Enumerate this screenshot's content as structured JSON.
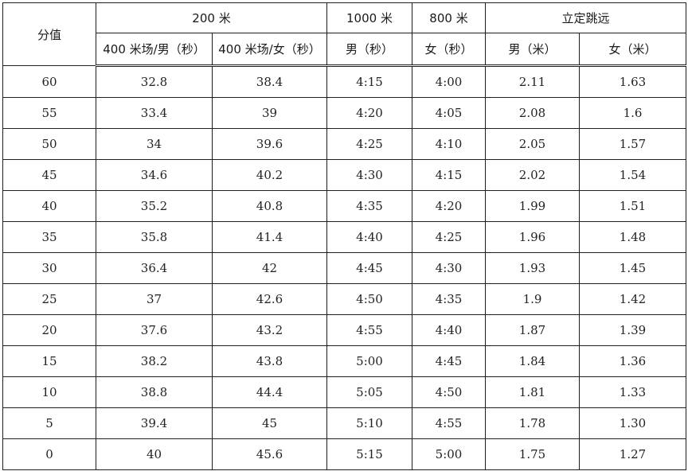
{
  "header": {
    "score": "分值",
    "groups": {
      "run200": "200 米",
      "run1000": "1000 米",
      "run800": "800 米",
      "jump": "立定跳远"
    },
    "subcols": {
      "run200_male": "400 米场/男（秒）",
      "run200_female": "400 米场/女（秒）",
      "run1000_male": "男（秒）",
      "run800_female": "女（秒）",
      "jump_male": "男（米）",
      "jump_female": "女（米）"
    }
  },
  "rows": [
    {
      "score": "60",
      "r200m": "32.8",
      "r200f": "38.4",
      "r1000": "4:15",
      "r800": "4:00",
      "jm": "2.11",
      "jf": "1.63"
    },
    {
      "score": "55",
      "r200m": "33.4",
      "r200f": "39",
      "r1000": "4:20",
      "r800": "4:05",
      "jm": "2.08",
      "jf": "1.6"
    },
    {
      "score": "50",
      "r200m": "34",
      "r200f": "39.6",
      "r1000": "4:25",
      "r800": "4:10",
      "jm": "2.05",
      "jf": "1.57"
    },
    {
      "score": "45",
      "r200m": "34.6",
      "r200f": "40.2",
      "r1000": "4:30",
      "r800": "4:15",
      "jm": "2.02",
      "jf": "1.54"
    },
    {
      "score": "40",
      "r200m": "35.2",
      "r200f": "40.8",
      "r1000": "4:35",
      "r800": "4:20",
      "jm": "1.99",
      "jf": "1.51"
    },
    {
      "score": "35",
      "r200m": "35.8",
      "r200f": "41.4",
      "r1000": "4:40",
      "r800": "4:25",
      "jm": "1.96",
      "jf": "1.48"
    },
    {
      "score": "30",
      "r200m": "36.4",
      "r200f": "42",
      "r1000": "4:45",
      "r800": "4:30",
      "jm": "1.93",
      "jf": "1.45"
    },
    {
      "score": "25",
      "r200m": "37",
      "r200f": "42.6",
      "r1000": "4:50",
      "r800": "4:35",
      "jm": "1.9",
      "jf": "1.42"
    },
    {
      "score": "20",
      "r200m": "37.6",
      "r200f": "43.2",
      "r1000": "4:55",
      "r800": "4:40",
      "jm": "1.87",
      "jf": "1.39"
    },
    {
      "score": "15",
      "r200m": "38.2",
      "r200f": "43.8",
      "r1000": "5:00",
      "r800": "4:45",
      "jm": "1.84",
      "jf": "1.36"
    },
    {
      "score": "10",
      "r200m": "38.8",
      "r200f": "44.4",
      "r1000": "5:05",
      "r800": "4:50",
      "jm": "1.81",
      "jf": "1.33"
    },
    {
      "score": "5",
      "r200m": "39.4",
      "r200f": "45",
      "r1000": "5:10",
      "r800": "4:55",
      "jm": "1.78",
      "jf": "1.30"
    },
    {
      "score": "0",
      "r200m": "40",
      "r200f": "45.6",
      "r1000": "5:15",
      "r800": "5:00",
      "jm": "1.75",
      "jf": "1.27"
    }
  ]
}
